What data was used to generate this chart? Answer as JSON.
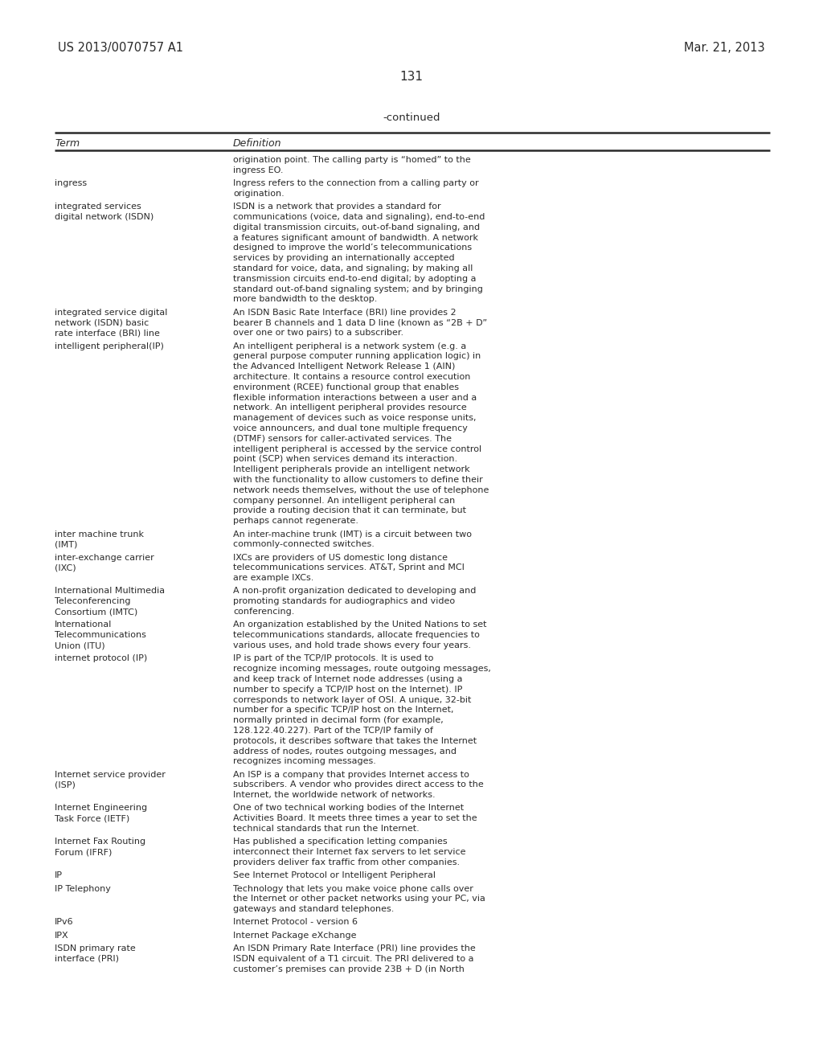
{
  "header_left": "US 2013/0070757 A1",
  "header_right": "Mar. 21, 2013",
  "page_number": "131",
  "continued_label": "-continued",
  "col1_header": "Term",
  "col2_header": "Definition",
  "background_color": "#ffffff",
  "text_color": "#2a2a2a",
  "table_entries": [
    {
      "term": "",
      "definition": "origination point. The calling party is “homed” to the\ningress EO."
    },
    {
      "term": "ingress",
      "definition": "Ingress refers to the connection from a calling party or\norigination."
    },
    {
      "term": "integrated services\ndigital network (ISDN)",
      "definition": "ISDN is a network that provides a standard for\ncommunications (voice, data and signaling), end-to-end\ndigital transmission circuits, out-of-band signaling, and\na features significant amount of bandwidth. A network\ndesigned to improve the world’s telecommunications\nservices by providing an internationally accepted\nstandard for voice, data, and signaling; by making all\ntransmission circuits end-to-end digital; by adopting a\nstandard out-of-band signaling system; and by bringing\nmore bandwidth to the desktop."
    },
    {
      "term": "integrated service digital\nnetwork (ISDN) basic\nrate interface (BRI) line",
      "definition": "An ISDN Basic Rate Interface (BRI) line provides 2\nbearer B channels and 1 data D line (known as “2B + D”\nover one or two pairs) to a subscriber."
    },
    {
      "term": "intelligent peripheral(IP)",
      "definition": "An intelligent peripheral is a network system (e.g. a\ngeneral purpose computer running application logic) in\nthe Advanced Intelligent Network Release 1 (AIN)\narchitecture. It contains a resource control execution\nenvironment (RCEE) functional group that enables\nflexible information interactions between a user and a\nnetwork. An intelligent peripheral provides resource\nmanagement of devices such as voice response units,\nvoice announcers, and dual tone multiple frequency\n(DTMF) sensors for caller-activated services. The\nintelligent peripheral is accessed by the service control\npoint (SCP) when services demand its interaction.\nIntelligent peripherals provide an intelligent network\nwith the functionality to allow customers to define their\nnetwork needs themselves, without the use of telephone\ncompany personnel. An intelligent peripheral can\nprovide a routing decision that it can terminate, but\nperhaps cannot regenerate."
    },
    {
      "term": "inter machine trunk\n(IMT)",
      "definition": "An inter-machine trunk (IMT) is a circuit between two\ncommonly-connected switches."
    },
    {
      "term": "inter-exchange carrier\n(IXC)",
      "definition": "IXCs are providers of US domestic long distance\ntelecommunications services. AT&T, Sprint and MCI\nare example IXCs."
    },
    {
      "term": "International Multimedia\nTeleconferencing\nConsortium (IMTC)",
      "definition": "A non-profit organization dedicated to developing and\npromoting standards for audiographics and video\nconferencing."
    },
    {
      "term": "International\nTelecommunications\nUnion (ITU)",
      "definition": "An organization established by the United Nations to set\ntelecommunications standards, allocate frequencies to\nvarious uses, and hold trade shows every four years."
    },
    {
      "term": "internet protocol (IP)",
      "definition": "IP is part of the TCP/IP protocols. It is used to\nrecognize incoming messages, route outgoing messages,\nand keep track of Internet node addresses (using a\nnumber to specify a TCP/IP host on the Internet). IP\ncorresponds to network layer of OSI. A unique, 32-bit\nnumber for a specific TCP/IP host on the Internet,\nnormally printed in decimal form (for example,\n128.122.40.227). Part of the TCP/IP family of\nprotocols, it describes software that takes the Internet\naddress of nodes, routes outgoing messages, and\nrecognizes incoming messages."
    },
    {
      "term": "Internet service provider\n(ISP)",
      "definition": "An ISP is a company that provides Internet access to\nsubscribers. A vendor who provides direct access to the\nInternet, the worldwide network of networks."
    },
    {
      "term": "Internet Engineering\nTask Force (IETF)",
      "definition": "One of two technical working bodies of the Internet\nActivities Board. It meets three times a year to set the\ntechnical standards that run the Internet."
    },
    {
      "term": "Internet Fax Routing\nForum (IFRF)",
      "definition": "Has published a specification letting companies\ninterconnect their Internet fax servers to let service\nproviders deliver fax traffic from other companies."
    },
    {
      "term": "IP",
      "definition": "See Internet Protocol or Intelligent Peripheral"
    },
    {
      "term": "IP Telephony",
      "definition": "Technology that lets you make voice phone calls over\nthe Internet or other packet networks using your PC, via\ngateways and standard telephones."
    },
    {
      "term": "IPv6",
      "definition": "Internet Protocol - version 6"
    },
    {
      "term": "IPX",
      "definition": "Internet Package eXchange"
    },
    {
      "term": "ISDN primary rate\ninterface (PRI)",
      "definition": "An ISDN Primary Rate Interface (PRI) line provides the\nISDN equivalent of a T1 circuit. The PRI delivered to a\ncustomer’s premises can provide 23B + D (in North"
    }
  ]
}
